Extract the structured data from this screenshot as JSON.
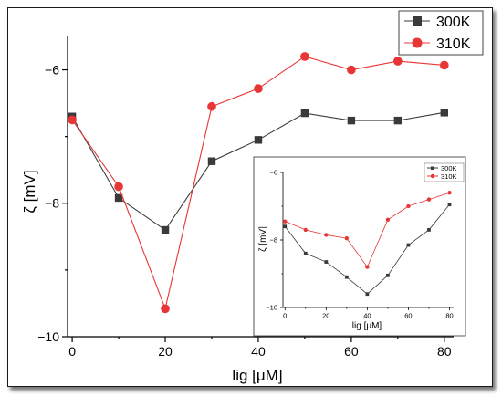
{
  "colors": {
    "series_300K": "#3a3a3a",
    "series_310K": "#e83535"
  },
  "chart_data": [
    {
      "type": "line",
      "xlabel": "lig [μM]",
      "ylabel": "ζ [mV]",
      "xlim": [
        -1,
        82
      ],
      "ylim": [
        -10,
        -5.5
      ],
      "xticks": [
        0,
        20,
        40,
        60,
        80
      ],
      "yticks": [
        -10,
        -8,
        -6
      ],
      "x": [
        0,
        10,
        20,
        30,
        40,
        50,
        60,
        70,
        80
      ],
      "series": [
        {
          "name": "300K",
          "marker": "square",
          "values": [
            -6.7,
            -7.92,
            -8.4,
            -7.37,
            -7.05,
            -6.65,
            -6.76,
            -6.76,
            -6.64
          ]
        },
        {
          "name": "310K",
          "marker": "circle",
          "values": [
            -6.75,
            -7.75,
            -9.58,
            -6.55,
            -6.28,
            -5.8,
            -6.0,
            -5.87,
            -5.93
          ]
        }
      ],
      "legend": "top-right",
      "grid": false
    },
    {
      "type": "line",
      "xlabel": "lig [μM]",
      "ylabel": "ζ [mV]",
      "xlim": [
        -1,
        82
      ],
      "ylim": [
        -10,
        -6
      ],
      "xticks": [
        0,
        20,
        40,
        60,
        80
      ],
      "yticks": [
        -10,
        -8,
        -6
      ],
      "x": [
        0,
        10,
        20,
        30,
        40,
        50,
        60,
        70,
        80
      ],
      "series": [
        {
          "name": "300K",
          "marker": "square",
          "values": [
            -7.6,
            -8.4,
            -8.65,
            -9.1,
            -9.6,
            -9.05,
            -8.15,
            -7.7,
            -6.95
          ]
        },
        {
          "name": "310K",
          "marker": "circle",
          "values": [
            -7.45,
            -7.7,
            -7.85,
            -7.95,
            -8.8,
            -7.4,
            -7.0,
            -6.8,
            -6.6
          ]
        }
      ],
      "legend": "top-right",
      "grid": false
    }
  ]
}
